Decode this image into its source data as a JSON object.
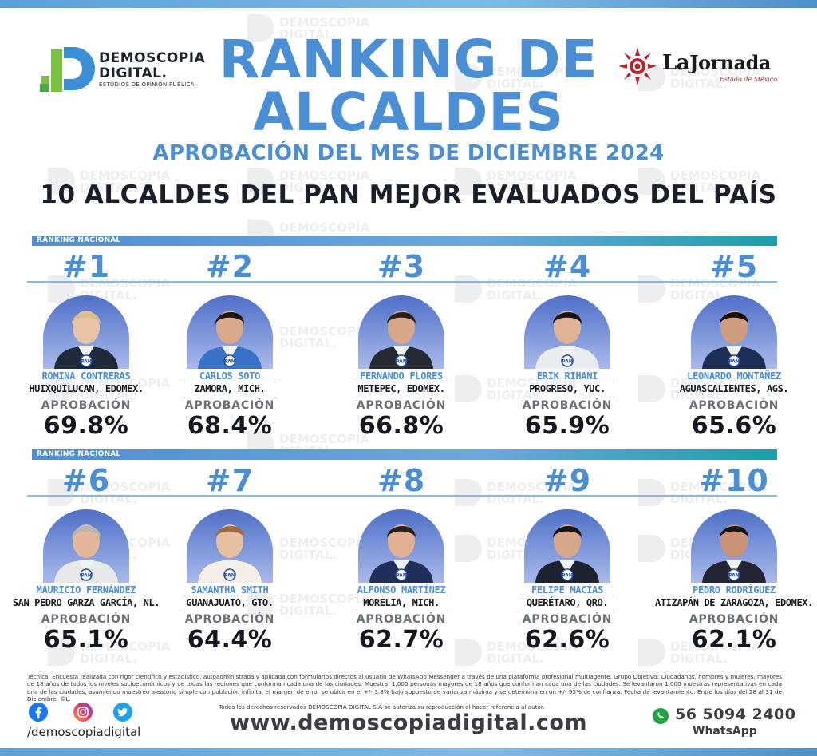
{
  "header": {
    "logo_left": {
      "line1": "DEMOSCOPIA",
      "line2": "DIGITAL.",
      "tagline": "ESTUDIOS DE OPINIÓN PÚBLICA"
    },
    "title_line1": "RANKING DE",
    "title_line2": "ALCALDES",
    "subtitle": "APROBACIÓN DEL MES DE DICIEMBRE 2024",
    "headline": "10 ALCALDES DEL PAN MEJOR EVALUADOS DEL PAÍS",
    "logo_right": {
      "name_la": "La",
      "name_jornada": "Jornada",
      "edition": "Estado de México"
    }
  },
  "ranking_label": "RANKING NACIONAL",
  "approval_label": "APROBACIÓN",
  "mayors": [
    {
      "rank": "#1",
      "name": "ROMINA CONTRERAS",
      "city": "HUIXQUILUCAN, EDOMEX.",
      "approval": "69.8%"
    },
    {
      "rank": "#2",
      "name": "CARLOS SOTO",
      "city": "ZAMORA, MICH.",
      "approval": "68.4%"
    },
    {
      "rank": "#3",
      "name": "FERNANDO FLORES",
      "city": "METEPEC, EDOMEX.",
      "approval": "66.8%"
    },
    {
      "rank": "#4",
      "name": "ERIK RIHANI",
      "city": "PROGRESO, YUC.",
      "approval": "65.9%"
    },
    {
      "rank": "#5",
      "name": "LEONARDO MONTAÑEZ",
      "city": "AGUASCALIENTES, AGS.",
      "approval": "65.6%"
    },
    {
      "rank": "#6",
      "name": "MAURICIO FERNÁNDEZ",
      "city": "SAN PEDRO GARZA GARCÍA, NL.",
      "approval": "65.1%"
    },
    {
      "rank": "#7",
      "name": "SAMANTHA SMITH",
      "city": "GUANAJUATO, GTO.",
      "approval": "64.4%"
    },
    {
      "rank": "#8",
      "name": "ALFONSO MARTÍNEZ",
      "city": "MORELIA, MICH.",
      "approval": "62.7%"
    },
    {
      "rank": "#9",
      "name": "FELIPE MACÍAS",
      "city": "QUERÉTARO, QRO.",
      "approval": "62.6%"
    },
    {
      "rank": "#10",
      "name": "PEDRO RODRÍGUEZ",
      "city": "ATIZAPÁN DE ZARAGOZA, EDOMEX.",
      "approval": "62.1%"
    }
  ],
  "photo_badge": "PAN",
  "technical_note": "Técnica: Encuesta realizada con rigor científico y estadístico, autoadministrada y aplicada con formularios directos al usuario de WhatsApp Messenger a través de una plataforma profesional multiagente. Grupo Objetivo: Ciudadanos, hombres y mujeres, mayores de 18 años de todos los niveles socioeconómicos y de todas las regiones que conforman cada una de las ciudades. Muestra: 1,000 personas mayores de 18 años que conforman cada una de las ciudades. Se levantaron 1,000 muestras representativas en cada una de las ciudades, asumiendo muestreo aleatorio simple con población infinita, el margen de error se ubica en el +/- 3.8% bajo supuesto de varianza máxima y se determina en un +/- 95% de confianza. Fecha de levantamiento: Entre los días del 28 al 31 de Diciembre. ©L.",
  "technical_note_last": "Todos los derechos reservados DEMOSCOPIA DIGITAL S.A se autoriza su reproducción al hacer referencia al autor.",
  "footer": {
    "social_handle": "/demoscopiadigital",
    "website": "www.demoscopiadigital.com",
    "phone": "56 5094 2400",
    "phone_label": "WhatsApp"
  },
  "colors": {
    "accent_blue": "#4a8fd6",
    "dark_text": "#151820",
    "bar_teal": "#1aa0a8",
    "jornada_red": "#b8232e",
    "whatsapp_green": "#25a244"
  }
}
